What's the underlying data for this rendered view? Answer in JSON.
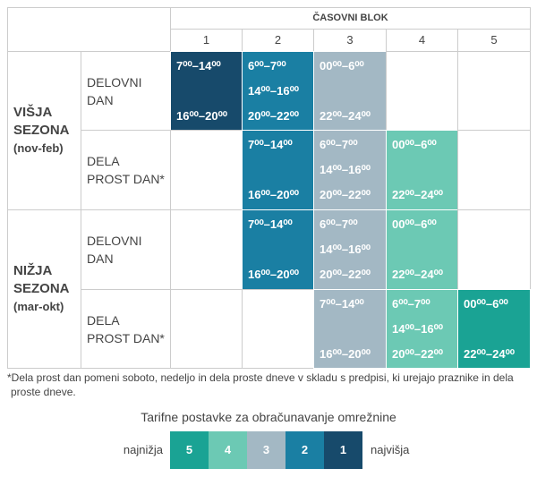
{
  "header": {
    "title": "ČASOVNI BLOK",
    "blocks": [
      "1",
      "2",
      "3",
      "4",
      "5"
    ]
  },
  "seasons": [
    {
      "name": "VIŠJA SEZONA",
      "period": "(nov-feb)",
      "days": [
        {
          "label": "DELOVNI DAN",
          "cells": [
            {
              "color": "#174a6b",
              "times": [
                "7⁰⁰–14⁰⁰",
                "16⁰⁰–20⁰⁰"
              ]
            },
            {
              "color": "#1a7fa3",
              "times": [
                "6⁰⁰–7⁰⁰",
                "14⁰⁰–16⁰⁰",
                "20⁰⁰–22⁰⁰"
              ]
            },
            {
              "color": "#a3b8c4",
              "times": [
                "00⁰⁰–6⁰⁰",
                "22⁰⁰–24⁰⁰"
              ]
            },
            null,
            null
          ]
        },
        {
          "label": "DELA PROST DAN*",
          "cells": [
            null,
            {
              "color": "#1a7fa3",
              "times": [
                "7⁰⁰–14⁰⁰",
                "16⁰⁰–20⁰⁰"
              ]
            },
            {
              "color": "#a3b8c4",
              "times": [
                "6⁰⁰–7⁰⁰",
                "14⁰⁰–16⁰⁰",
                "20⁰⁰–22⁰⁰"
              ]
            },
            {
              "color": "#6cc9b4",
              "times": [
                "00⁰⁰–6⁰⁰",
                "22⁰⁰–24⁰⁰"
              ]
            },
            null
          ]
        }
      ]
    },
    {
      "name": "NIŽJA SEZONA",
      "period": "(mar-okt)",
      "days": [
        {
          "label": "DELOVNI DAN",
          "cells": [
            null,
            {
              "color": "#1a7fa3",
              "times": [
                "7⁰⁰–14⁰⁰",
                "16⁰⁰–20⁰⁰"
              ]
            },
            {
              "color": "#a3b8c4",
              "times": [
                "6⁰⁰–7⁰⁰",
                "14⁰⁰–16⁰⁰",
                "20⁰⁰–22⁰⁰"
              ]
            },
            {
              "color": "#6cc9b4",
              "times": [
                "00⁰⁰–6⁰⁰",
                "22⁰⁰–24⁰⁰"
              ]
            },
            null
          ]
        },
        {
          "label": "DELA PROST DAN*",
          "cells": [
            null,
            null,
            {
              "color": "#a3b8c4",
              "times": [
                "7⁰⁰–14⁰⁰",
                "16⁰⁰–20⁰⁰"
              ]
            },
            {
              "color": "#6cc9b4",
              "times": [
                "6⁰⁰–7⁰⁰",
                "14⁰⁰–16⁰⁰",
                "20⁰⁰–22⁰⁰"
              ]
            },
            {
              "color": "#1aa394",
              "times": [
                "00⁰⁰–6⁰⁰",
                "22⁰⁰–24⁰⁰"
              ]
            }
          ]
        }
      ]
    }
  ],
  "footnote": "*Dela prost dan pomeni soboto, nedeljo in dela proste dneve v skladu s predpisi, ki urejajo praznike in dela proste dneve.",
  "legend": {
    "title": "Tarifne postavke za obračunavanje omrežnine",
    "low": "najnižja",
    "high": "najvišja",
    "items": [
      {
        "label": "5",
        "color": "#1aa394"
      },
      {
        "label": "4",
        "color": "#6cc9b4"
      },
      {
        "label": "3",
        "color": "#a3b8c4"
      },
      {
        "label": "2",
        "color": "#1a7fa3"
      },
      {
        "label": "1",
        "color": "#174a6b"
      }
    ]
  }
}
